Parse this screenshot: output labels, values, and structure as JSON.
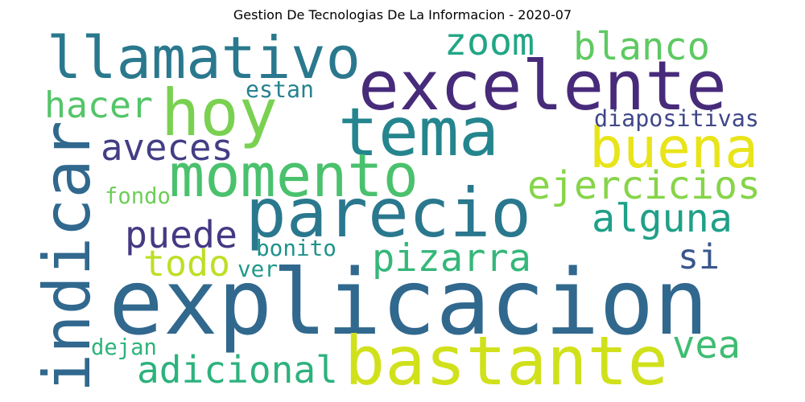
{
  "title": "Gestion De Tecnologias De La Informacion - 2020-07",
  "words": [
    {
      "text": "explicacion",
      "color": "#31688e"
    },
    {
      "text": "bastante",
      "color": "#d0e11c"
    },
    {
      "text": "excelente",
      "color": "#472b7a"
    },
    {
      "text": "parecio",
      "color": "#2a788e"
    },
    {
      "text": "indicar",
      "color": "#31688e"
    },
    {
      "text": "tema",
      "color": "#25858e"
    },
    {
      "text": "llamativo",
      "color": "#2a788e"
    },
    {
      "text": "hoy",
      "color": "#7ad151"
    },
    {
      "text": "momento",
      "color": "#4ac16d"
    },
    {
      "text": "buena",
      "color": "#e8e419"
    },
    {
      "text": "ejercicios",
      "color": "#86d549"
    },
    {
      "text": "zoom",
      "color": "#21a685"
    },
    {
      "text": "blanco",
      "color": "#5ec962"
    },
    {
      "text": "aveces",
      "color": "#433e85"
    },
    {
      "text": "alguna",
      "color": "#1fa088"
    },
    {
      "text": "puede",
      "color": "#443983"
    },
    {
      "text": "pizarra",
      "color": "#35b779"
    },
    {
      "text": "hacer",
      "color": "#54c568"
    },
    {
      "text": "adicional",
      "color": "#2db27d"
    },
    {
      "text": "todo",
      "color": "#bddf26"
    },
    {
      "text": "vea",
      "color": "#3fbc73"
    },
    {
      "text": "si",
      "color": "#39568c"
    },
    {
      "text": "diapositivas",
      "color": "#404688"
    },
    {
      "text": "estan",
      "color": "#26828e"
    },
    {
      "text": "fondo",
      "color": "#6ece58"
    },
    {
      "text": "bonito",
      "color": "#20928c"
    },
    {
      "text": "ver",
      "color": "#1f998a"
    },
    {
      "text": "dejan",
      "color": "#2eb37c"
    }
  ]
}
